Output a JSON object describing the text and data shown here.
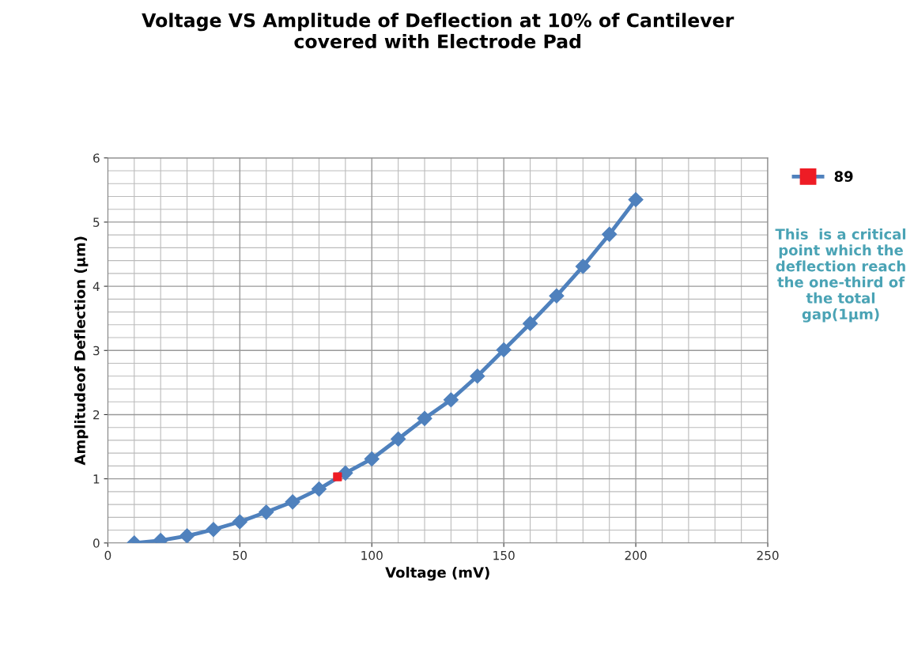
{
  "chart_data": {
    "type": "line",
    "title": "Voltage VS Amplitude of Deflection at 10% of Cantilever\ncovered with Electrode Pad",
    "xlabel": "Voltage (mV)",
    "ylabel": "Amplitudeof Deflection (µm)",
    "series": [
      {
        "color": "#4f81bd",
        "marker": "diamond",
        "x": [
          10,
          20,
          30,
          40,
          50,
          60,
          70,
          80,
          90,
          100,
          110,
          120,
          130,
          140,
          150,
          160,
          170,
          180,
          190,
          200
        ],
        "values": [
          0,
          0.04,
          0.11,
          0.21,
          0.33,
          0.48,
          0.64,
          0.84,
          1.09,
          1.31,
          1.62,
          1.94,
          2.23,
          2.6,
          3.01,
          3.42,
          3.85,
          4.31,
          4.81,
          5.35
        ]
      },
      {
        "name": "89",
        "type": "scatter",
        "color": "#ee1c25",
        "marker": "square",
        "x": [
          87
        ],
        "values": [
          1.03
        ]
      }
    ],
    "xlim": [
      0,
      250
    ],
    "xticks": [
      0,
      50,
      100,
      150,
      200,
      250
    ],
    "ylim": [
      0,
      6
    ],
    "yticks": [
      0,
      1,
      2,
      3,
      4,
      5,
      6
    ],
    "grid": true,
    "legend": "right",
    "annotations": [
      "This  is a critical point which the deflection reach the one-third of the total gap(1µm)"
    ]
  }
}
